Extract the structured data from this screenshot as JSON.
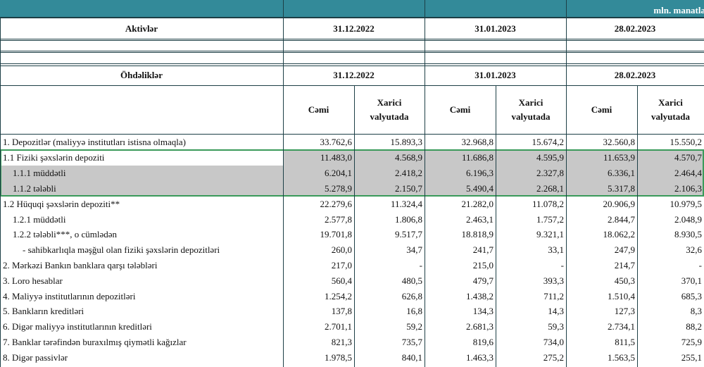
{
  "header": {
    "unit": "mln. manatla"
  },
  "assets_header": {
    "label": "Aktivlər",
    "dates": [
      "31.12.2022",
      "31.01.2023",
      "28.02.2023"
    ]
  },
  "liabilities_header": {
    "label": "Öhdəliklər",
    "dates": [
      "31.12.2022",
      "31.01.2023",
      "28.02.2023"
    ],
    "subheaders": [
      "Cəmi",
      "Xarici valyutada",
      "Cəmi",
      "Xarici valyutada",
      "Cəmi",
      "Xarici valyutada"
    ]
  },
  "rows": [
    {
      "label": "1. Depozitlər (maliyyə institutları istisna olmaqla)",
      "values": [
        "33.762,6",
        "15.893,3",
        "32.968,8",
        "15.674,2",
        "32.560,8",
        "15.550,2"
      ]
    },
    {
      "label": "1.1 Fiziki şəxslərin depoziti",
      "values": [
        "11.483,0",
        "4.568,9",
        "11.686,8",
        "4.595,9",
        "11.653,9",
        "4.570,7"
      ]
    },
    {
      "label": "1.1.1 müddətli",
      "values": [
        "6.204,1",
        "2.418,2",
        "6.196,3",
        "2.327,8",
        "6.336,1",
        "2.464,4"
      ]
    },
    {
      "label": "1.1.2 tələbli",
      "values": [
        "5.278,9",
        "2.150,7",
        "5.490,4",
        "2.268,1",
        "5.317,8",
        "2.106,3"
      ]
    },
    {
      "label": "1.2 Hüquqi şəxslərin depoziti**",
      "values": [
        "22.279,6",
        "11.324,4",
        "21.282,0",
        "11.078,2",
        "20.906,9",
        "10.979,5"
      ]
    },
    {
      "label": "1.2.1 müddətli",
      "values": [
        "2.577,8",
        "1.806,8",
        "2.463,1",
        "1.757,2",
        "2.844,7",
        "2.048,9"
      ]
    },
    {
      "label": "1.2.2 tələbli***, o cümlədən",
      "values": [
        "19.701,8",
        "9.517,7",
        "18.818,9",
        "9.321,1",
        "18.062,2",
        "8.930,5"
      ]
    },
    {
      "label": "- sahibkarlıqla məşğul olan fiziki şəxslərin depozitləri",
      "values": [
        "260,0",
        "34,7",
        "241,7",
        "33,1",
        "247,9",
        "32,6"
      ]
    },
    {
      "label": "2. Mərkəzi Bankın banklara qarşı tələbləri",
      "values": [
        "217,0",
        "-",
        "215,0",
        "-",
        "214,7",
        "-"
      ]
    },
    {
      "label": "3. Loro hesablar",
      "values": [
        "560,4",
        "480,5",
        "479,7",
        "393,3",
        "450,3",
        "370,1"
      ]
    },
    {
      "label": "4. Maliyyə institutlarının  depozitləri",
      "values": [
        "1.254,2",
        "626,8",
        "1.438,2",
        "711,2",
        "1.510,4",
        "685,3"
      ]
    },
    {
      "label": "5. Bankların kreditləri",
      "values": [
        "137,8",
        "16,8",
        "134,3",
        "14,3",
        "127,3",
        "8,3"
      ]
    },
    {
      "label": "6. Digər maliyyə institutlarının kreditləri",
      "values": [
        "2.701,1",
        "59,2",
        "2.681,3",
        "59,3",
        "2.734,1",
        "88,2"
      ]
    },
    {
      "label": "7. Banklar tərəfindən buraxılmış qiymətli kağızlar",
      "values": [
        "821,3",
        "735,7",
        "819,6",
        "734,0",
        "811,5",
        "725,9"
      ]
    },
    {
      "label": "8. Digər passivlər",
      "values": [
        "1.978,5",
        "840,1",
        "1.463,3",
        "275,2",
        "1.563,5",
        "255,1"
      ]
    }
  ]
}
